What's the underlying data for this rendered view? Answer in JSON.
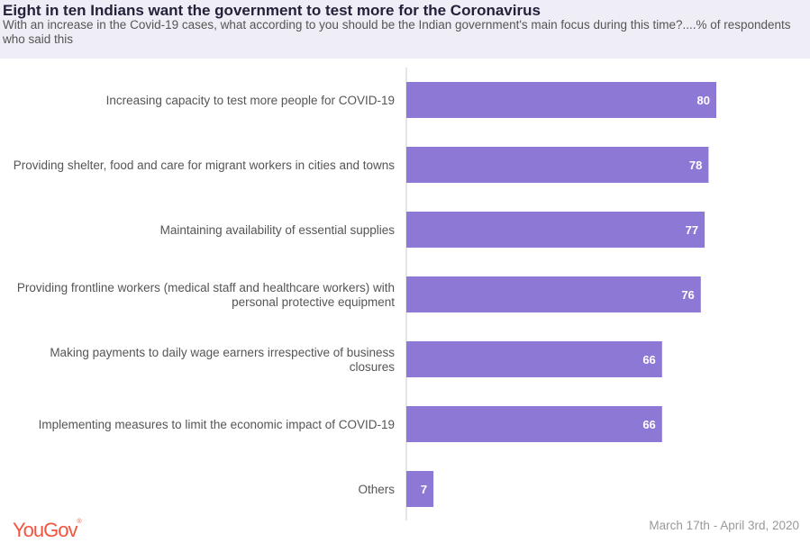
{
  "header": {
    "title": "Eight in ten Indians want the government to test more for the Coronavirus",
    "subtitle": "With an increase in the Covid-19 cases, what according to you should be the Indian government's main focus during this time?....% of respondents who said this"
  },
  "footer": {
    "logo": "YouGov",
    "date": "March 17th - April 3rd, 2020"
  },
  "colors": {
    "bar": "#8e78d6",
    "header_bg": "#efedf6",
    "logo": "#f2543d"
  },
  "chart_data": {
    "type": "bar",
    "orientation": "horizontal",
    "categories": [
      [
        "Increasing capacity to test more people for COVID-19"
      ],
      [
        "Providing shelter, food and care for migrant workers in cities and towns"
      ],
      [
        "Maintaining availability of essential supplies"
      ],
      [
        "Providing frontline workers (medical staff and healthcare workers) with",
        "personal protective equipment"
      ],
      [
        "Making payments to daily wage earners irrespective of business",
        "closures"
      ],
      [
        "Implementing measures to limit the economic impact of COVID-19"
      ],
      [
        "Others"
      ]
    ],
    "values": [
      80,
      78,
      77,
      76,
      66,
      66,
      7
    ],
    "xlim": [
      0,
      100
    ],
    "grid": false
  }
}
